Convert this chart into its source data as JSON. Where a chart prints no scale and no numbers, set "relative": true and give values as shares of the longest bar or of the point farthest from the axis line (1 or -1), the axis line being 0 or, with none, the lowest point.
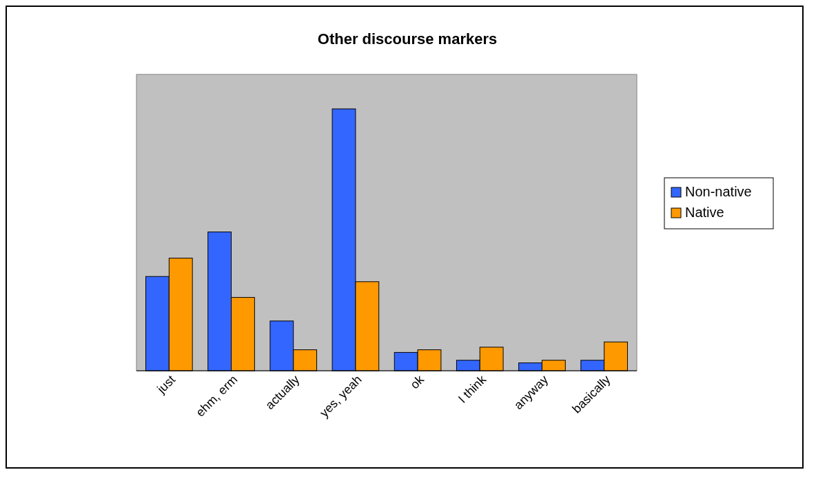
{
  "chart_data": {
    "type": "bar",
    "title": "Other discourse markers",
    "categories": [
      "just",
      "ehm, erm",
      "actually",
      "yes, yeah",
      "ok",
      "I think",
      "anyway",
      "basically"
    ],
    "series": [
      {
        "name": "Non-native",
        "color": "#3366ff",
        "values": [
          0.36,
          0.53,
          0.19,
          1,
          0.07,
          0.04,
          0.03,
          0.04
        ]
      },
      {
        "name": "Native",
        "color": "#ff9900",
        "values": [
          0.43,
          0.28,
          0.08,
          0.34,
          0.08,
          0.09,
          0.04,
          0.11
        ]
      }
    ],
    "relative": true,
    "legend": "right"
  }
}
